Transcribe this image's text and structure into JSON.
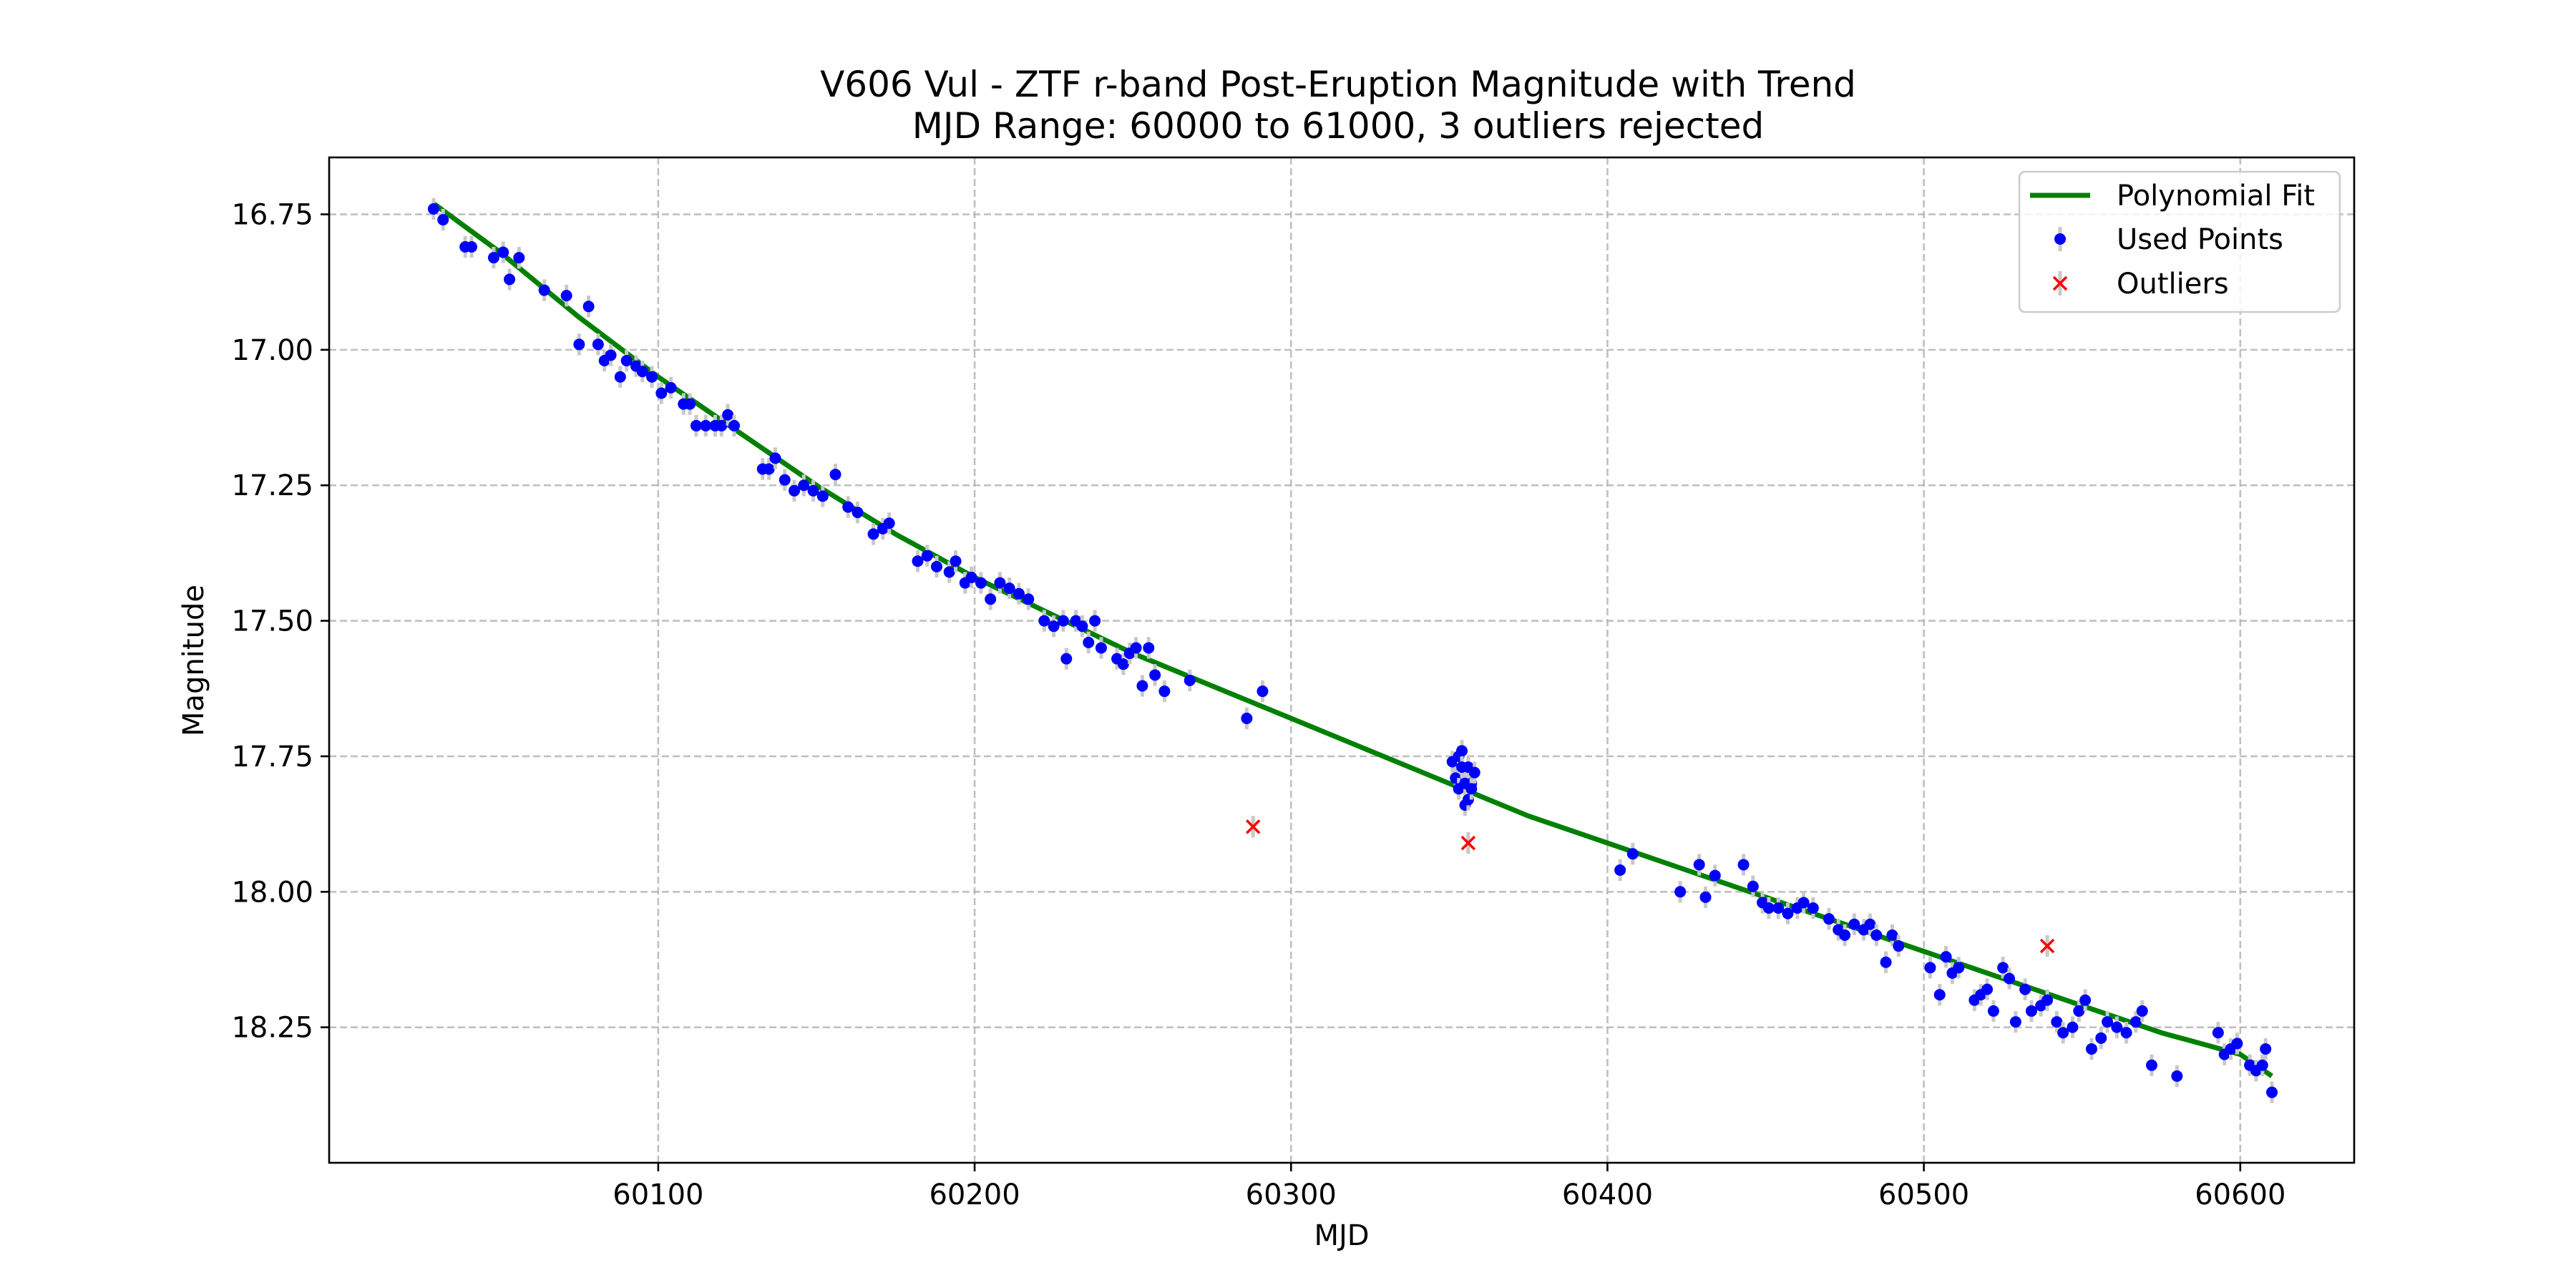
{
  "chart_data": {
    "type": "scatter",
    "title": "V606 Vul - ZTF r-band Post-Eruption Magnitude with Trend",
    "subtitle": "MJD Range: 60000 to 61000, 3 outliers rejected",
    "xlabel": "MJD",
    "ylabel": "Magnitude",
    "xlim": [
      59996,
      60636
    ],
    "ylim": [
      18.5,
      16.645
    ],
    "y_inverted": true,
    "grid": true,
    "legend_placement": "top-right",
    "x_ticks": [
      {
        "value": 60100,
        "label": "60100"
      },
      {
        "value": 60200,
        "label": "60200"
      },
      {
        "value": 60300,
        "label": "60300"
      },
      {
        "value": 60400,
        "label": "60400"
      },
      {
        "value": 60500,
        "label": "60500"
      },
      {
        "value": 60600,
        "label": "60600"
      }
    ],
    "y_ticks": [
      {
        "value": 16.75,
        "label": "16.75"
      },
      {
        "value": 17.0,
        "label": "17.00"
      },
      {
        "value": 17.25,
        "label": "17.25"
      },
      {
        "value": 17.5,
        "label": "17.50"
      },
      {
        "value": 17.75,
        "label": "17.75"
      },
      {
        "value": 18.0,
        "label": "18.00"
      },
      {
        "value": 18.25,
        "label": "18.25"
      }
    ],
    "legend": [
      {
        "label": "Polynomial Fit",
        "marker": "line",
        "color": "#008000"
      },
      {
        "label": "Used Points",
        "marker": "dot",
        "color": "#0000ff"
      },
      {
        "label": "Outliers",
        "marker": "x",
        "color": "#ff0000"
      }
    ],
    "colors": {
      "fit": "#008000",
      "used": "#0000ff",
      "outlier": "#ff0000",
      "errorbar": "#c8c8c8",
      "grid": "#b0b0b0"
    },
    "series": [
      {
        "name": "Polynomial Fit",
        "kind": "line",
        "x": [
          60029,
          60050,
          60075,
          60100,
          60125,
          60150,
          60175,
          60200,
          60225,
          60250,
          60275,
          60300,
          60325,
          60350,
          60375,
          60400,
          60425,
          60450,
          60475,
          60500,
          60525,
          60550,
          60575,
          60600,
          60610
        ],
        "y": [
          16.73,
          16.82,
          16.94,
          17.05,
          17.15,
          17.25,
          17.34,
          17.42,
          17.49,
          17.56,
          17.62,
          17.68,
          17.74,
          17.8,
          17.86,
          17.91,
          17.96,
          18.01,
          18.06,
          18.11,
          18.16,
          18.21,
          18.26,
          18.3,
          18.34
        ]
      },
      {
        "name": "Used Points",
        "kind": "scatter",
        "yerr": 0.02,
        "x": [
          60029,
          60032,
          60039,
          60041,
          60048,
          60051,
          60053,
          60056,
          60064,
          60071,
          60075,
          60078,
          60081,
          60083,
          60085,
          60088,
          60090,
          60093,
          60095,
          60098,
          60101,
          60104,
          60108,
          60110,
          60112,
          60115,
          60118,
          60120,
          60122,
          60124,
          60133,
          60135,
          60137,
          60140,
          60143,
          60146,
          60149,
          60152,
          60156,
          60160,
          60163,
          60168,
          60171,
          60173,
          60182,
          60185,
          60188,
          60192,
          60194,
          60197,
          60199,
          60202,
          60205,
          60208,
          60211,
          60214,
          60217,
          60222,
          60225,
          60228,
          60229,
          60232,
          60234,
          60236,
          60238,
          60240,
          60245,
          60247,
          60249,
          60251,
          60253,
          60255,
          60257,
          60260,
          60268,
          60286,
          60291,
          60351,
          60352,
          60353,
          60353,
          60354,
          60354,
          60355,
          60355,
          60356,
          60356,
          60357,
          60357,
          60358,
          60404,
          60408,
          60423,
          60429,
          60431,
          60434,
          60443,
          60446,
          60449,
          60451,
          60454,
          60457,
          60460,
          60462,
          60465,
          60470,
          60473,
          60475,
          60478,
          60481,
          60483,
          60485,
          60488,
          60490,
          60492,
          60502,
          60505,
          60507,
          60509,
          60511,
          60516,
          60518,
          60520,
          60522,
          60525,
          60527,
          60529,
          60532,
          60534,
          60537,
          60539,
          60542,
          60544,
          60547,
          60549,
          60551,
          60553,
          60556,
          60558,
          60561,
          60564,
          60567,
          60569,
          60572,
          60580,
          60593,
          60595,
          60597,
          60599,
          60603,
          60605,
          60607,
          60608,
          60610
        ],
        "y": [
          16.74,
          16.76,
          16.81,
          16.81,
          16.83,
          16.82,
          16.87,
          16.83,
          16.89,
          16.9,
          16.99,
          16.92,
          16.99,
          17.02,
          17.01,
          17.05,
          17.02,
          17.03,
          17.04,
          17.05,
          17.08,
          17.07,
          17.1,
          17.1,
          17.14,
          17.14,
          17.14,
          17.14,
          17.12,
          17.14,
          17.22,
          17.22,
          17.2,
          17.24,
          17.26,
          17.25,
          17.26,
          17.27,
          17.23,
          17.29,
          17.3,
          17.34,
          17.33,
          17.32,
          17.39,
          17.38,
          17.4,
          17.41,
          17.39,
          17.43,
          17.42,
          17.43,
          17.46,
          17.43,
          17.44,
          17.45,
          17.46,
          17.5,
          17.51,
          17.5,
          17.57,
          17.5,
          17.51,
          17.54,
          17.5,
          17.55,
          17.57,
          17.58,
          17.56,
          17.55,
          17.62,
          17.55,
          17.6,
          17.63,
          17.61,
          17.68,
          17.63,
          17.76,
          17.79,
          17.75,
          17.81,
          17.74,
          17.77,
          17.8,
          17.84,
          17.77,
          17.83,
          17.8,
          17.81,
          17.78,
          17.96,
          17.93,
          18.0,
          17.95,
          18.01,
          17.97,
          17.95,
          17.99,
          18.02,
          18.03,
          18.03,
          18.04,
          18.03,
          18.02,
          18.03,
          18.05,
          18.07,
          18.08,
          18.06,
          18.07,
          18.06,
          18.08,
          18.13,
          18.08,
          18.1,
          18.14,
          18.19,
          18.12,
          18.15,
          18.14,
          18.2,
          18.19,
          18.18,
          18.22,
          18.14,
          18.16,
          18.24,
          18.18,
          18.22,
          18.21,
          18.2,
          18.24,
          18.26,
          18.25,
          18.22,
          18.2,
          18.29,
          18.27,
          18.24,
          18.25,
          18.26,
          18.24,
          18.22,
          18.32,
          18.34,
          18.26,
          18.3,
          18.29,
          18.28,
          18.32,
          18.33,
          18.32,
          18.29,
          18.37
        ]
      },
      {
        "name": "Outliers",
        "kind": "scatter",
        "yerr": 0.02,
        "x": [
          60288,
          60356,
          60539
        ],
        "y": [
          17.88,
          17.91,
          18.1
        ]
      }
    ]
  }
}
